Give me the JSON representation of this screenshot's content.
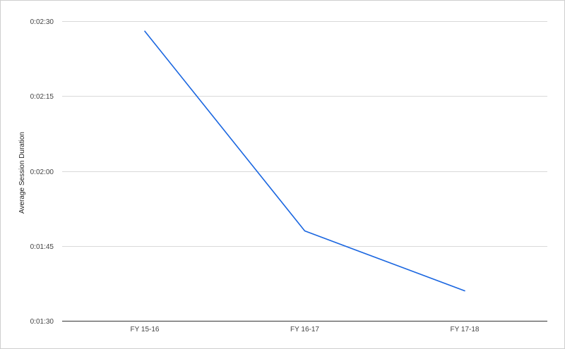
{
  "chart_data": {
    "type": "line",
    "title": "",
    "xlabel": "",
    "ylabel": "Average Session Duration",
    "categories": [
      "FY 15-16",
      "FY 16-17",
      "FY 17-18"
    ],
    "series": [
      {
        "values": [
          148,
          108,
          96
        ],
        "color": "#1a66e0"
      }
    ],
    "ylim": [
      90,
      150
    ],
    "yticks": [
      90,
      105,
      120,
      135,
      150
    ],
    "ytick_labels": [
      "0:01:30",
      "0:01:45",
      "0:02:00",
      "0:02:15",
      "0:02:30"
    ],
    "y_unit": "seconds",
    "grid": true,
    "legend": "none"
  }
}
